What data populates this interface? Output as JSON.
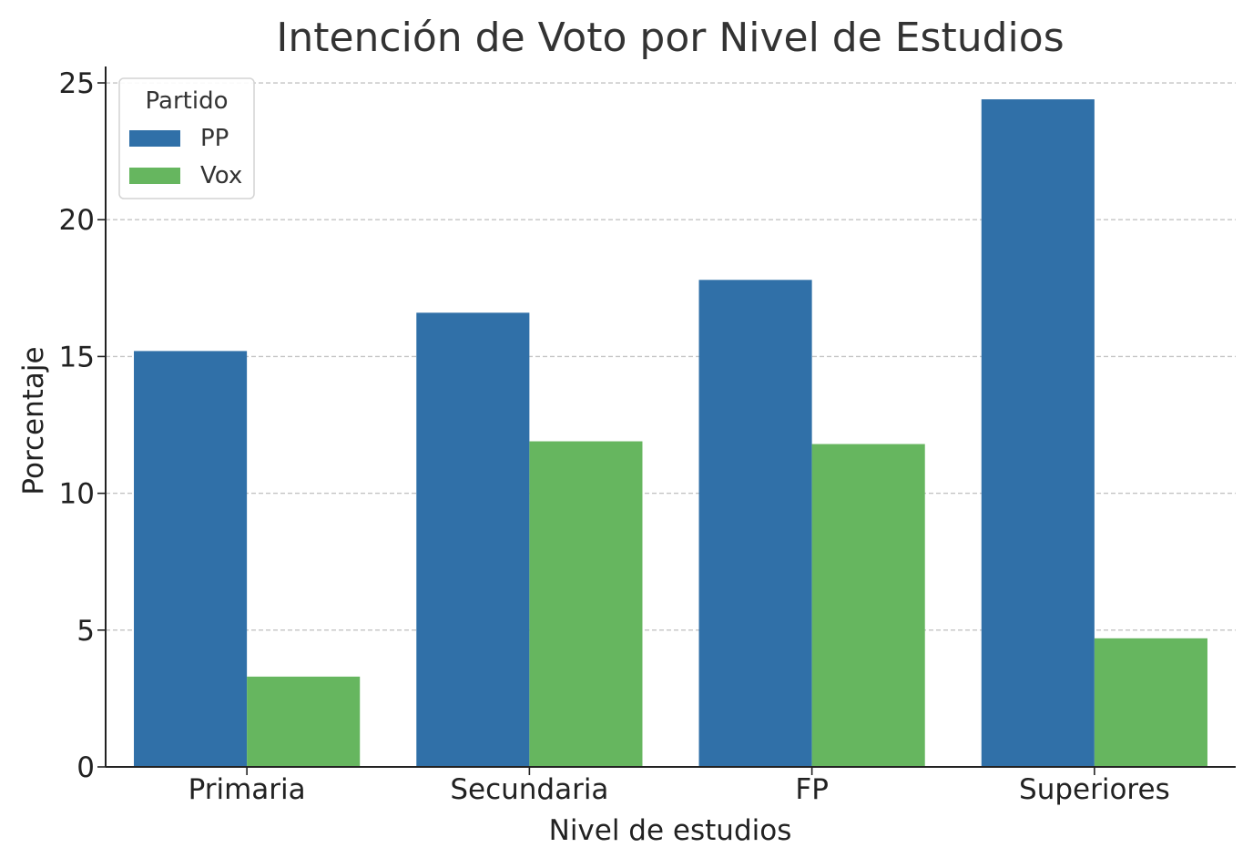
{
  "chart_data": {
    "type": "bar",
    "title": "Intención de Voto por Nivel de Estudios",
    "xlabel": "Nivel de estudios",
    "ylabel": "Porcentaje",
    "categories": [
      "Primaria",
      "Secundaria",
      "FP",
      "Superiores"
    ],
    "series": [
      {
        "name": "PP",
        "color": "#3070a8",
        "values": [
          15.2,
          16.6,
          17.8,
          24.4
        ]
      },
      {
        "name": "Vox",
        "color": "#66b65f",
        "values": [
          3.3,
          11.9,
          11.8,
          4.7
        ]
      }
    ],
    "ylim": [
      0,
      25.6
    ],
    "yticks": [
      0,
      5,
      10,
      15,
      20,
      25
    ],
    "grid": "horizontal dashed",
    "legend": {
      "title": "Partido",
      "placement": "top-left"
    }
  }
}
